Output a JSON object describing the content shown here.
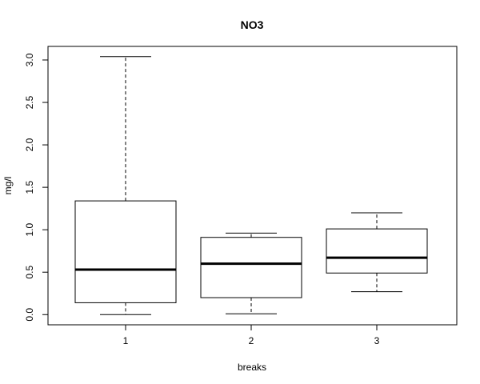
{
  "chart_data": {
    "type": "boxplot",
    "title": "NO3",
    "xlabel": "breaks",
    "ylabel": "mg/l",
    "categories": [
      "1",
      "2",
      "3"
    ],
    "ylim": [
      -0.12,
      3.16
    ],
    "yticks": [
      0.0,
      0.5,
      1.0,
      1.5,
      2.0,
      2.5,
      3.0
    ],
    "ytick_labels": [
      "0.0",
      "0.5",
      "1.0",
      "1.5",
      "2.0",
      "2.5",
      "3.0"
    ],
    "boxes": [
      {
        "category": "1",
        "whisker_low": 0.0,
        "q1": 0.14,
        "median": 0.53,
        "q3": 1.34,
        "whisker_high": 3.04
      },
      {
        "category": "2",
        "whisker_low": 0.01,
        "q1": 0.2,
        "median": 0.6,
        "q3": 0.91,
        "whisker_high": 0.96
      },
      {
        "category": "3",
        "whisker_low": 0.27,
        "q1": 0.49,
        "median": 0.67,
        "q3": 1.01,
        "whisker_high": 1.2
      }
    ],
    "grid": false,
    "legend": "none"
  }
}
